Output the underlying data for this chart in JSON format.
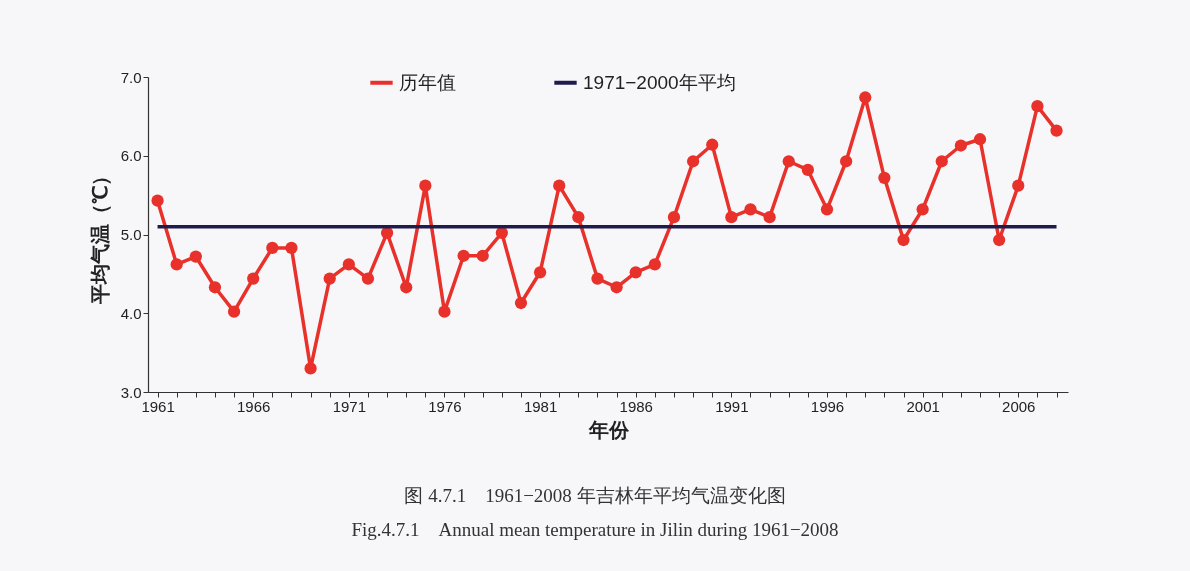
{
  "chart_data": {
    "type": "line",
    "xlabel": "年份",
    "ylabel": "平均气温（℃）",
    "x": [
      1961,
      1962,
      1963,
      1964,
      1965,
      1966,
      1967,
      1968,
      1969,
      1970,
      1971,
      1972,
      1973,
      1974,
      1975,
      1976,
      1977,
      1978,
      1979,
      1980,
      1981,
      1982,
      1983,
      1984,
      1985,
      1986,
      1987,
      1988,
      1989,
      1990,
      1991,
      1992,
      1993,
      1994,
      1995,
      1996,
      1997,
      1998,
      1999,
      2000,
      2001,
      2002,
      2003,
      2004,
      2005,
      2006,
      2007,
      2008
    ],
    "series": [
      {
        "name": "历年值",
        "color": "#e8312a",
        "marker": "circle",
        "values": [
          5.43,
          4.62,
          4.72,
          4.33,
          4.02,
          4.44,
          4.83,
          4.83,
          3.3,
          4.44,
          4.62,
          4.44,
          5.02,
          4.33,
          5.62,
          4.02,
          4.73,
          4.73,
          5.02,
          4.13,
          4.52,
          5.62,
          5.22,
          4.44,
          4.33,
          4.52,
          4.62,
          5.22,
          5.93,
          6.14,
          5.22,
          5.32,
          5.22,
          5.93,
          5.82,
          5.32,
          5.93,
          6.74,
          5.72,
          4.93,
          5.32,
          5.93,
          6.13,
          6.21,
          4.93,
          5.62,
          6.63,
          6.32
        ]
      },
      {
        "name": "1971−2000年平均",
        "color": "#1f1b4d",
        "marker": "none",
        "x": [
          1961,
          2008
        ],
        "values": [
          5.1,
          5.1
        ]
      }
    ],
    "xlim": [
      1960.5,
      2008.6
    ],
    "xticks": [
      1961,
      {
        "value": 1962,
        "label": null
      },
      {
        "value": 1963,
        "label": null
      },
      {
        "value": 1964,
        "label": null
      },
      {
        "value": 1965,
        "label": null
      },
      1966,
      {
        "value": 1967,
        "label": null
      },
      {
        "value": 1968,
        "label": null
      },
      {
        "value": 1969,
        "label": null
      },
      {
        "value": 1970,
        "label": null
      },
      1971,
      {
        "value": 1972,
        "label": null
      },
      {
        "value": 1973,
        "label": null
      },
      {
        "value": 1974,
        "label": null
      },
      {
        "value": 1975,
        "label": null
      },
      1976,
      {
        "value": 1977,
        "label": null
      },
      {
        "value": 1978,
        "label": null
      },
      {
        "value": 1979,
        "label": null
      },
      {
        "value": 1980,
        "label": null
      },
      1981,
      {
        "value": 1982,
        "label": null
      },
      {
        "value": 1983,
        "label": null
      },
      {
        "value": 1984,
        "label": null
      },
      {
        "value": 1985,
        "label": null
      },
      1986,
      {
        "value": 1987,
        "label": null
      },
      {
        "value": 1988,
        "label": null
      },
      {
        "value": 1989,
        "label": null
      },
      {
        "value": 1990,
        "label": null
      },
      1991,
      {
        "value": 1992,
        "label": null
      },
      {
        "value": 1993,
        "label": null
      },
      {
        "value": 1994,
        "label": null
      },
      {
        "value": 1995,
        "label": null
      },
      1996,
      {
        "value": 1997,
        "label": null
      },
      {
        "value": 1998,
        "label": null
      },
      {
        "value": 1999,
        "label": null
      },
      {
        "value": 2000,
        "label": null
      },
      2001,
      {
        "value": 2002,
        "label": null
      },
      {
        "value": 2003,
        "label": null
      },
      {
        "value": 2004,
        "label": null
      },
      {
        "value": 2005,
        "label": null
      },
      2006,
      {
        "value": 2007,
        "label": null
      },
      {
        "value": 2008,
        "label": null
      }
    ],
    "ylim": [
      3.0,
      7.0
    ],
    "yticks": [
      {
        "value": 3,
        "label": "3.0"
      },
      {
        "value": 4,
        "label": "4.0"
      },
      {
        "value": 5,
        "label": "5.0"
      },
      {
        "value": 6,
        "label": "6.0"
      },
      {
        "value": 7,
        "label": "7.0"
      }
    ],
    "grid": false,
    "legend": "top",
    "line_style": "solid",
    "annotations": [
      "图 4.7.1　1961−2008 年吉林年平均气温变化图",
      "Fig.4.7.1　Annual mean temperature in Jilin during 1961−2008"
    ]
  }
}
